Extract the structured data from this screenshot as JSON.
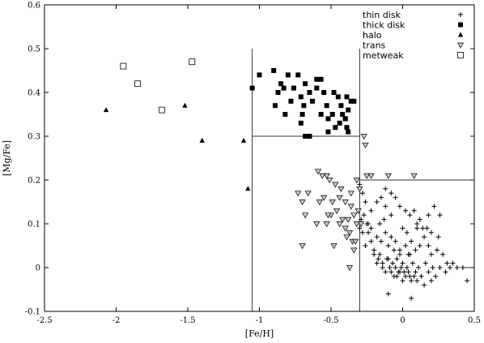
{
  "chart_data": {
    "type": "scatter",
    "xlabel": "[Fe/H]",
    "ylabel": "[Mg/Fe]",
    "xlim": [
      -2.5,
      0.5
    ],
    "ylim": [
      -0.1,
      0.6
    ],
    "xticks": [
      -2.5,
      -2,
      -1.5,
      -1,
      -0.5,
      0,
      0.5
    ],
    "yticks": [
      -0.1,
      0,
      0.1,
      0.2,
      0.3,
      0.4,
      0.5,
      0.6
    ],
    "xtick_labels": [
      "-2.5",
      "-2",
      "-1.5",
      "-1",
      "-0.5",
      "0",
      "0.5"
    ],
    "ytick_labels": [
      "-0.1",
      "0",
      "0.1",
      "0.2",
      "0.3",
      "0.4",
      "0.5",
      "0.6"
    ],
    "grid": false,
    "legend_position": "top-right",
    "series": [
      {
        "name": "thin disk",
        "marker": "plus",
        "points": [
          [
            -0.3,
            0.19
          ],
          [
            -0.28,
            0.17
          ],
          [
            -0.26,
            0.15
          ],
          [
            -0.22,
            0.13
          ],
          [
            -0.18,
            0.15
          ],
          [
            -0.12,
            0.14
          ],
          [
            -0.08,
            0.12
          ],
          [
            -0.05,
            0.16
          ],
          [
            -0.02,
            0.14
          ],
          [
            0.02,
            0.13
          ],
          [
            0.05,
            0.12
          ],
          [
            0.08,
            0.13
          ],
          [
            0.12,
            0.11
          ],
          [
            0.18,
            0.12
          ],
          [
            0.22,
            0.14
          ],
          [
            0.26,
            0.12
          ],
          [
            -0.3,
            0.09
          ],
          [
            -0.28,
            0.08
          ],
          [
            -0.25,
            0.1
          ],
          [
            -0.22,
            0.09
          ],
          [
            -0.18,
            0.07
          ],
          [
            -0.15,
            0.06
          ],
          [
            -0.12,
            0.08
          ],
          [
            -0.1,
            0.05
          ],
          [
            -0.08,
            0.07
          ],
          [
            -0.05,
            0.06
          ],
          [
            -0.02,
            0.04
          ],
          [
            0.02,
            0.05
          ],
          [
            0.04,
            0.03
          ],
          [
            0.06,
            0.06
          ],
          [
            0.09,
            0.04
          ],
          [
            0.12,
            0.05
          ],
          [
            0.15,
            0.07
          ],
          [
            0.18,
            0.05
          ],
          [
            0.2,
            0.03
          ],
          [
            0.24,
            0.04
          ],
          [
            -0.26,
            0.05
          ],
          [
            -0.2,
            0.03
          ],
          [
            -0.17,
            0.02
          ],
          [
            -0.14,
            0.01
          ],
          [
            -0.11,
            0.02
          ],
          [
            -0.09,
            0.0
          ],
          [
            -0.07,
            0.01
          ],
          [
            -0.05,
            0.0
          ],
          [
            -0.03,
            -0.01
          ],
          [
            -0.01,
            0.0
          ],
          [
            0.01,
            -0.01
          ],
          [
            0.03,
            0.0
          ],
          [
            0.05,
            -0.02
          ],
          [
            0.07,
            0.01
          ],
          [
            0.09,
            -0.01
          ],
          [
            0.11,
            0.0
          ],
          [
            0.13,
            -0.02
          ],
          [
            0.16,
            0.01
          ],
          [
            0.18,
            -0.01
          ],
          [
            0.21,
            0.0
          ],
          [
            0.23,
            -0.02
          ],
          [
            0.26,
            0.0
          ],
          [
            0.3,
            -0.01
          ],
          [
            0.33,
            0.0
          ],
          [
            0.38,
            0.0
          ],
          [
            0.42,
            0.0
          ],
          [
            -0.08,
            -0.01
          ],
          [
            -0.06,
            -0.02
          ],
          [
            -0.04,
            -0.02
          ],
          [
            -0.02,
            -0.01
          ],
          [
            0.0,
            -0.03
          ],
          [
            0.02,
            -0.02
          ],
          [
            0.04,
            -0.01
          ],
          [
            0.06,
            -0.03
          ],
          [
            0.08,
            -0.02
          ],
          [
            0.1,
            -0.03
          ],
          [
            -0.1,
            0.02
          ],
          [
            -0.12,
            -0.01
          ],
          [
            -0.14,
            0.0
          ],
          [
            -0.16,
            0.03
          ],
          [
            -0.18,
            0.01
          ],
          [
            -0.2,
            0.04
          ],
          [
            -0.22,
            0.06
          ],
          [
            -0.24,
            0.08
          ],
          [
            -0.29,
            0.11
          ],
          [
            -0.27,
            0.12
          ],
          [
            -0.24,
            0.1
          ],
          [
            -0.16,
            0.1
          ],
          [
            -0.13,
            0.11
          ],
          [
            0.0,
            0.09
          ],
          [
            0.03,
            0.08
          ],
          [
            0.1,
            0.1
          ],
          [
            0.14,
            0.09
          ],
          [
            0.17,
            0.09
          ],
          [
            0.2,
            0.08
          ],
          [
            0.25,
            0.07
          ],
          [
            0.28,
            0.03
          ],
          [
            0.31,
            0.01
          ],
          [
            0.35,
            0.01
          ],
          [
            0.2,
            -0.03
          ],
          [
            0.15,
            -0.04
          ],
          [
            -0.04,
            0.02
          ],
          [
            -0.02,
            0.03
          ],
          [
            -0.12,
            0.18
          ],
          [
            -0.08,
            0.17
          ],
          [
            -0.15,
            0.16
          ],
          [
            0.06,
            -0.07
          ],
          [
            -0.1,
            -0.06
          ],
          [
            0.45,
            -0.03
          ],
          [
            0.1,
            0.09
          ],
          [
            0.05,
            0.03
          ],
          [
            -0.06,
            0.04
          ],
          [
            0.0,
            0.01
          ]
        ]
      },
      {
        "name": "thick disk",
        "marker": "filled-square",
        "points": [
          [
            -1.05,
            0.41
          ],
          [
            -1.0,
            0.44
          ],
          [
            -0.9,
            0.45
          ],
          [
            -0.85,
            0.42
          ],
          [
            -0.8,
            0.44
          ],
          [
            -0.73,
            0.44
          ],
          [
            -0.68,
            0.42
          ],
          [
            -0.6,
            0.43
          ],
          [
            -0.57,
            0.43
          ],
          [
            -0.87,
            0.4
          ],
          [
            -0.83,
            0.41
          ],
          [
            -0.76,
            0.41
          ],
          [
            -0.71,
            0.39
          ],
          [
            -0.65,
            0.4
          ],
          [
            -0.6,
            0.41
          ],
          [
            -0.55,
            0.4
          ],
          [
            -0.48,
            0.4
          ],
          [
            -0.45,
            0.39
          ],
          [
            -0.39,
            0.39
          ],
          [
            -0.36,
            0.38
          ],
          [
            -0.34,
            0.38
          ],
          [
            -0.78,
            0.38
          ],
          [
            -0.69,
            0.37
          ],
          [
            -0.63,
            0.38
          ],
          [
            -0.53,
            0.37
          ],
          [
            -0.43,
            0.37
          ],
          [
            -0.89,
            0.37
          ],
          [
            -0.82,
            0.35
          ],
          [
            -0.7,
            0.35
          ],
          [
            -0.57,
            0.35
          ],
          [
            -0.52,
            0.34
          ],
          [
            -0.49,
            0.35
          ],
          [
            -0.42,
            0.35
          ],
          [
            -0.44,
            0.33
          ],
          [
            -0.38,
            0.36
          ],
          [
            -0.4,
            0.34
          ],
          [
            -0.47,
            0.32
          ],
          [
            -0.52,
            0.31
          ],
          [
            -0.39,
            0.32
          ],
          [
            -0.71,
            0.33
          ],
          [
            -0.68,
            0.3
          ],
          [
            -0.65,
            0.3
          ],
          [
            -0.38,
            0.31
          ],
          [
            -0.4,
            0.34
          ]
        ]
      },
      {
        "name": "halo",
        "marker": "filled-triangle",
        "points": [
          [
            -2.07,
            0.36
          ],
          [
            -1.52,
            0.37
          ],
          [
            -1.4,
            0.29
          ],
          [
            -1.11,
            0.29
          ],
          [
            -1.08,
            0.18
          ]
        ]
      },
      {
        "name": "trans",
        "marker": "open-triangle-down",
        "points": [
          [
            -0.27,
            0.3
          ],
          [
            -0.26,
            0.28
          ],
          [
            -0.59,
            0.22
          ],
          [
            -0.56,
            0.21
          ],
          [
            -0.53,
            0.21
          ],
          [
            -0.51,
            0.2
          ],
          [
            -0.47,
            0.19
          ],
          [
            -0.43,
            0.18
          ],
          [
            -0.36,
            0.17
          ],
          [
            -0.32,
            0.2
          ],
          [
            -0.25,
            0.21
          ],
          [
            -0.22,
            0.21
          ],
          [
            -0.1,
            0.21
          ],
          [
            0.08,
            0.21
          ],
          [
            -0.73,
            0.17
          ],
          [
            -0.7,
            0.15
          ],
          [
            -0.55,
            0.16
          ],
          [
            -0.44,
            0.16
          ],
          [
            -0.4,
            0.15
          ],
          [
            -0.36,
            0.14
          ],
          [
            -0.34,
            0.12
          ],
          [
            -0.46,
            0.13
          ],
          [
            -0.5,
            0.12
          ],
          [
            -0.53,
            0.1
          ],
          [
            -0.42,
            0.11
          ],
          [
            -0.38,
            0.11
          ],
          [
            -0.32,
            0.1
          ],
          [
            -0.37,
            0.08
          ],
          [
            -0.35,
            0.06
          ],
          [
            -0.33,
            0.06
          ],
          [
            -0.48,
            0.05
          ],
          [
            -0.52,
            0.12
          ],
          [
            -0.6,
            0.1
          ],
          [
            -0.68,
            0.12
          ],
          [
            -0.44,
            0.1
          ],
          [
            -0.4,
            0.09
          ],
          [
            -0.7,
            0.05
          ],
          [
            -0.37,
            0.0
          ],
          [
            -0.31,
            0.13
          ],
          [
            -0.29,
            0.1
          ],
          [
            -0.58,
            0.15
          ],
          [
            -0.66,
            0.17
          ],
          [
            -0.3,
            0.18
          ],
          [
            -0.49,
            0.15
          ],
          [
            -0.39,
            0.07
          ],
          [
            -0.34,
            0.04
          ]
        ]
      },
      {
        "name": "metweak",
        "marker": "open-square",
        "points": [
          [
            -1.95,
            0.46
          ],
          [
            -1.85,
            0.42
          ],
          [
            -1.68,
            0.36
          ],
          [
            -1.47,
            0.47
          ]
        ]
      }
    ],
    "reference_lines": [
      {
        "orientation": "vertical",
        "x": -1.05,
        "from_y": -0.1,
        "to_y": 0.5
      },
      {
        "orientation": "vertical",
        "x": -0.3,
        "from_y": -0.1,
        "to_y": 0.5
      },
      {
        "orientation": "horizontal",
        "y": 0.3,
        "from_x": -1.05,
        "to_x": -0.3
      },
      {
        "orientation": "horizontal",
        "y": 0.2,
        "from_x": -0.3,
        "to_x": 0.5
      },
      {
        "orientation": "horizontal",
        "y": 0.0,
        "from_x": 0.43,
        "to_x": 0.5
      }
    ]
  }
}
